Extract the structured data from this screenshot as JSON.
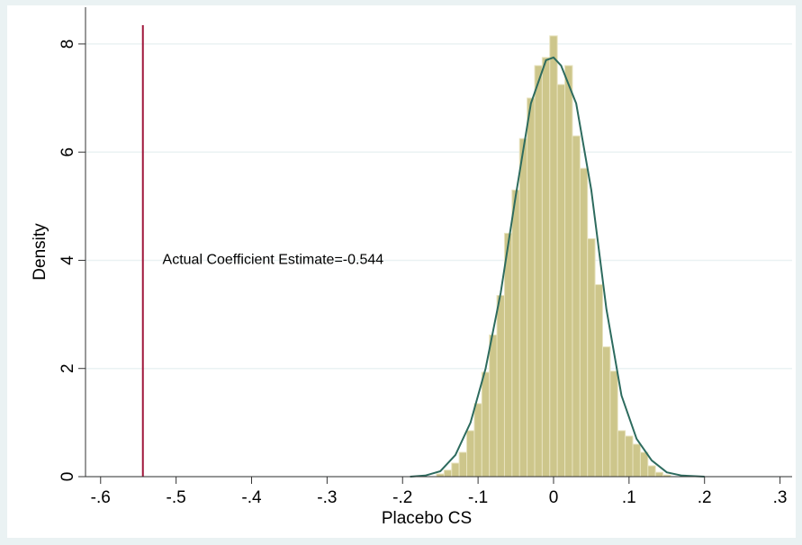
{
  "chart_data": {
    "type": "histogram",
    "xlabel": "Placebo CS",
    "ylabel": "Density",
    "bins": [
      -0.155,
      -0.145,
      -0.135,
      -0.125,
      -0.115,
      -0.105,
      -0.095,
      -0.085,
      -0.075,
      -0.065,
      -0.055,
      -0.045,
      -0.035,
      -0.025,
      -0.015,
      -0.005,
      0.005,
      0.015,
      0.025,
      0.035,
      0.045,
      0.055,
      0.065,
      0.075,
      0.085,
      0.095,
      0.105,
      0.115,
      0.125,
      0.135,
      0.145,
      0.155
    ],
    "values": [
      0.05,
      0.12,
      0.25,
      0.45,
      0.85,
      1.35,
      1.93,
      2.62,
      3.35,
      4.5,
      5.3,
      6.25,
      7.0,
      7.6,
      7.75,
      8.15,
      7.25,
      7.6,
      6.3,
      5.7,
      4.4,
      3.55,
      2.4,
      1.95,
      0.85,
      0.75,
      0.6,
      0.45,
      0.2,
      0.08,
      0.03
    ],
    "color": "#cdc68b",
    "density": {
      "color": "#2d6b5e",
      "x": [
        -0.19,
        -0.17,
        -0.15,
        -0.13,
        -0.11,
        -0.09,
        -0.07,
        -0.05,
        -0.03,
        -0.01,
        0.0,
        0.01,
        0.03,
        0.05,
        0.07,
        0.09,
        0.11,
        0.13,
        0.15,
        0.17,
        0.2
      ],
      "values": [
        0,
        0.02,
        0.1,
        0.4,
        1.0,
        2.0,
        3.4,
        5.2,
        6.9,
        7.7,
        7.75,
        7.6,
        6.9,
        5.3,
        3.1,
        1.5,
        0.7,
        0.3,
        0.08,
        0.02,
        0
      ]
    },
    "vline": {
      "value": -0.544,
      "color": "#a0163a"
    },
    "annotation": {
      "text": "Actual Coefficient Estimate=-0.544",
      "x": -0.518,
      "y": 4.0
    },
    "xlim": [
      -0.62,
      0.316
    ],
    "ylim": [
      0,
      8.68
    ],
    "xticks": [
      {
        "value": -0.6,
        "label": "-.6"
      },
      {
        "value": -0.5,
        "label": "-.5"
      },
      {
        "value": -0.4,
        "label": "-.4"
      },
      {
        "value": -0.3,
        "label": "-.3"
      },
      {
        "value": -0.2,
        "label": "-.2"
      },
      {
        "value": -0.1,
        "label": "-.1"
      },
      0,
      {
        "value": 0.1,
        "label": ".1"
      },
      {
        "value": 0.2,
        "label": ".2"
      },
      {
        "value": 0.3,
        "label": ".3"
      }
    ],
    "yticks": [
      0,
      2,
      4,
      6,
      8
    ],
    "grid": true
  }
}
